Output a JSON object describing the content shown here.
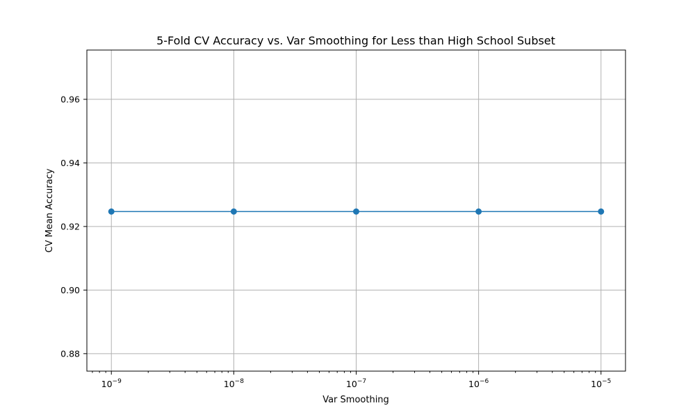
{
  "chart_data": {
    "type": "line",
    "title": "5-Fold CV Accuracy vs. Var Smoothing for Less than High School Subset",
    "xlabel": "Var Smoothing",
    "ylabel": "CV Mean Accuracy",
    "x_scale": "log",
    "x": [
      1e-09,
      1e-08,
      1e-07,
      1e-06,
      1e-05
    ],
    "x_tick_labels": [
      {
        "base": "10",
        "exp": "−9"
      },
      {
        "base": "10",
        "exp": "−8"
      },
      {
        "base": "10",
        "exp": "−7"
      },
      {
        "base": "10",
        "exp": "−6"
      },
      {
        "base": "10",
        "exp": "−5"
      }
    ],
    "y_ticks": [
      0.88,
      0.9,
      0.92,
      0.94,
      0.96
    ],
    "y_tick_labels": [
      "0.88",
      "0.90",
      "0.92",
      "0.94",
      "0.96"
    ],
    "ylim": [
      0.8745,
      0.9755
    ],
    "xlim_log10": [
      -9.2,
      -4.8
    ],
    "grid": true,
    "legend": false,
    "series": [
      {
        "values": [
          0.9247,
          0.9247,
          0.9247,
          0.9247,
          0.9247
        ],
        "color": "#1f77b4",
        "marker": "circle"
      }
    ]
  }
}
